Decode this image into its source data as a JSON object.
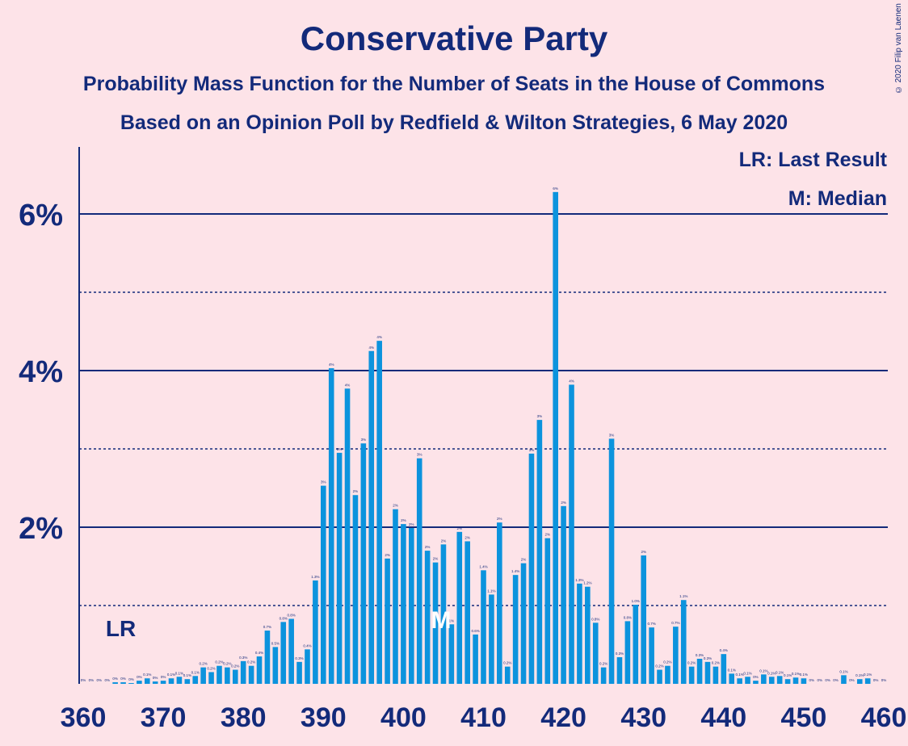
{
  "title": "Conservative Party",
  "subtitle1": "Probability Mass Function for the Number of Seats in the House of Commons",
  "subtitle2": "Based on an Opinion Poll by Redfield & Wilton Strategies, 6 May 2020",
  "copyright": "© 2020 Filip van Laenen",
  "legend": {
    "last_result": "LR: Last Result",
    "median": "M: Median"
  },
  "colors": {
    "background": "#fde3e8",
    "bar": "#0c93dd",
    "text": "#132a7a"
  },
  "chart_data": {
    "type": "bar",
    "xlabel": "",
    "ylabel": "",
    "x_ticks": [
      360,
      370,
      380,
      390,
      400,
      410,
      420,
      430,
      440,
      450,
      460
    ],
    "y_ticks": [
      "2%",
      "4%",
      "6%"
    ],
    "ylim": [
      0,
      6.8
    ],
    "grid": "solid at 2%, 4%, 6%; dotted at 1%, 3%, 5%",
    "last_result_seat": 365,
    "last_result_label": "LR",
    "median_seat": 405,
    "median_label": "M",
    "x": [
      360,
      361,
      362,
      363,
      364,
      365,
      366,
      367,
      368,
      369,
      370,
      371,
      372,
      373,
      374,
      375,
      376,
      377,
      378,
      379,
      380,
      381,
      382,
      383,
      384,
      385,
      386,
      387,
      388,
      389,
      390,
      391,
      392,
      393,
      394,
      395,
      396,
      397,
      398,
      399,
      400,
      401,
      402,
      403,
      404,
      405,
      406,
      407,
      408,
      409,
      410,
      411,
      412,
      413,
      414,
      415,
      416,
      417,
      418,
      419,
      420,
      421,
      422,
      423,
      424,
      425,
      426,
      427,
      428,
      429,
      430,
      431,
      432,
      433,
      434,
      435,
      436,
      437,
      438,
      439,
      440,
      441,
      442,
      443,
      444,
      445,
      446,
      447,
      448,
      449,
      450,
      451,
      452,
      453,
      454,
      455,
      456,
      457,
      458,
      459,
      460
    ],
    "values": [
      0,
      0,
      0,
      0,
      0.02,
      0.02,
      0.01,
      0.04,
      0.07,
      0.03,
      0.04,
      0.07,
      0.09,
      0.06,
      0.1,
      0.21,
      0.15,
      0.23,
      0.21,
      0.18,
      0.29,
      0.23,
      0.35,
      0.68,
      0.47,
      0.79,
      0.83,
      0.28,
      0.44,
      1.32,
      2.53,
      4.03,
      2.95,
      3.77,
      2.41,
      3.07,
      4.25,
      4.38,
      1.6,
      2.23,
      2.04,
      1.99,
      2.88,
      1.7,
      1.55,
      1.78,
      0.76,
      1.94,
      1.82,
      0.63,
      1.45,
      1.14,
      2.06,
      0.22,
      1.39,
      1.54,
      2.94,
      3.37,
      1.86,
      6.28,
      2.27,
      3.82,
      1.28,
      1.24,
      0.78,
      0.21,
      3.13,
      0.34,
      0.8,
      1.01,
      1.64,
      0.72,
      0.18,
      0.23,
      0.73,
      1.07,
      0.22,
      0.32,
      0.28,
      0.22,
      0.38,
      0.13,
      0.07,
      0.09,
      0.04,
      0.12,
      0.09,
      0.1,
      0.06,
      0.08,
      0.07,
      0,
      0,
      0,
      0,
      0.11,
      0,
      0.06,
      0.07,
      0,
      0
    ],
    "labels": [
      "0%",
      "0%",
      "0%",
      "0%",
      "0%",
      "0%",
      "0%",
      "0%",
      "0.1%",
      "0%",
      "0%",
      "0.1%",
      "0.1%",
      "0.1%",
      "0.1%",
      "0.2%",
      "0.2%",
      "0.2%",
      "0.2%",
      "0.2%",
      "0.3%",
      "0.2%",
      "0.4%",
      "0.7%",
      "0.5%",
      "0.8%",
      "0.8%",
      "0.3%",
      "0.4%",
      "1.3%",
      "3%",
      "4%",
      "3%",
      "4%",
      "2%",
      "3%",
      "4%",
      "4%",
      "2%",
      "2%",
      "2%",
      "2%",
      "3%",
      "2%",
      "2%",
      "2%",
      "1%",
      "2%",
      "2%",
      "0.6%",
      "1.4%",
      "1.1%",
      "2%",
      "0.2%",
      "1.4%",
      "2%",
      "3%",
      "3%",
      "2%",
      "6%",
      "2%",
      "4%",
      "1.3%",
      "1.2%",
      "0.8%",
      "0.2%",
      "3%",
      "0.3%",
      "0.8%",
      "1.0%",
      "2%",
      "0.7%",
      "0.2%",
      "0.2%",
      "0.7%",
      "1.1%",
      "0.2%",
      "0.3%",
      "0.3%",
      "0.2%",
      "0.4%",
      "0.1%",
      "0.1%",
      "0.1%",
      "0%",
      "0.1%",
      "0.1%",
      "0.1%",
      "0.1%",
      "0.1%",
      "0.1%",
      "0%",
      "0%",
      "0%",
      "0%",
      "0.1%",
      "0%",
      "0.1%",
      "0.1%",
      "0%",
      "0%"
    ]
  }
}
